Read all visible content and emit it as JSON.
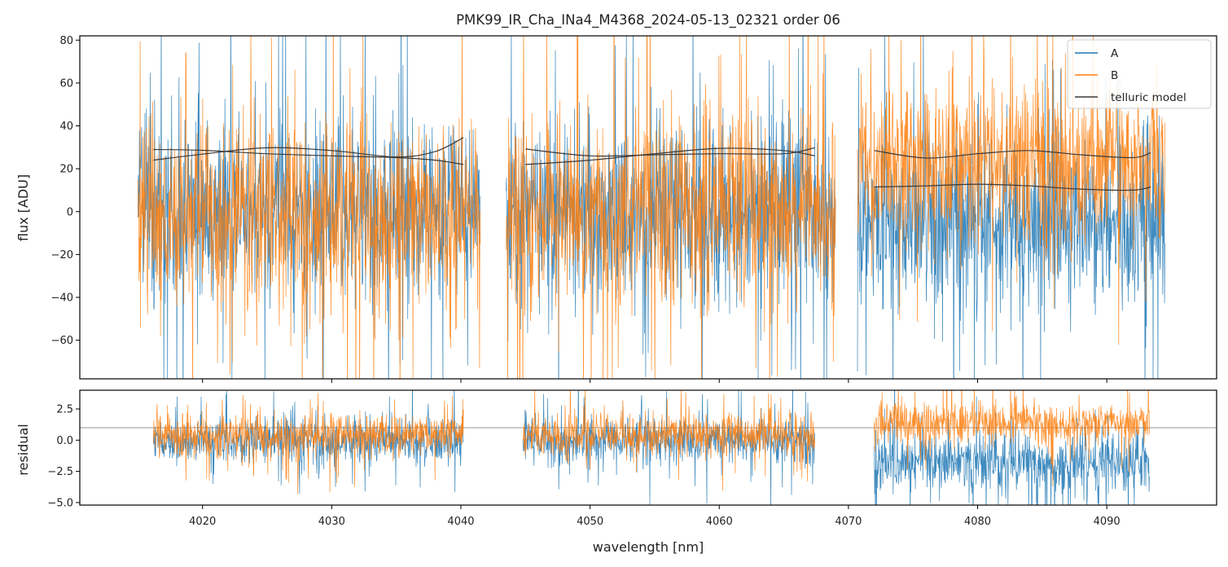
{
  "chart_data": {
    "type": "line",
    "title": "PMK99_IR_Cha_INa4_M4368_2024-05-13_02321  order 06",
    "xlabel": "wavelength [nm]",
    "xlim": [
      4010.5,
      4098.5
    ],
    "x_ticks": [
      4020,
      4030,
      4040,
      4050,
      4060,
      4070,
      4080,
      4090
    ],
    "x_tick_labels": [
      "4020",
      "4030",
      "4040",
      "4050",
      "4060",
      "4070",
      "4080",
      "4090"
    ],
    "colors": {
      "A": "#1f77b4",
      "B": "#ff7f0e",
      "telluric": "#3a3a3a",
      "ref": "#707070"
    },
    "panels": [
      {
        "name": "flux",
        "ylabel": "flux [ADU]",
        "ylim": [
          -78,
          82
        ],
        "y_ticks": [
          -60,
          -40,
          -20,
          0,
          20,
          40,
          60,
          80
        ],
        "y_tick_labels": [
          "−60",
          "−40",
          "−20",
          "0",
          "20",
          "40",
          "60",
          "80"
        ],
        "segments": [
          {
            "x_start": 4015.0,
            "x_end": 4041.5,
            "A": {
              "center": 0,
              "spread": 38
            },
            "B": {
              "center": 0,
              "spread": 40
            }
          },
          {
            "x_start": 4043.5,
            "x_end": 4069.0,
            "A": {
              "center": 0,
              "spread": 38
            },
            "B": {
              "center": 0,
              "spread": 40
            }
          },
          {
            "x_start": 4070.7,
            "x_end": 4094.5,
            "A": {
              "center": -5,
              "spread": 36
            },
            "B": {
              "center": 22,
              "spread": 34
            }
          }
        ],
        "telluric_model": [
          {
            "name": "segment-1-upper",
            "x": [
              4016.2,
              4020,
              4025,
              4030,
              4035,
              4038,
              4040.2
            ],
            "y": [
              29.0,
              28.6,
              27.0,
              26.0,
              25.2,
              24.0,
              22.0
            ]
          },
          {
            "name": "segment-1-lower",
            "x": [
              4016.2,
              4020,
              4025,
              4030,
              4035,
              4038,
              4040.2
            ],
            "y": [
              24.0,
              26.8,
              29.8,
              28.5,
              25.5,
              28.0,
              34.5
            ]
          },
          {
            "name": "segment-2-upper",
            "x": [
              4045,
              4050,
              4055,
              4060,
              4065,
              4067.4
            ],
            "y": [
              29.2,
              26.0,
              26.5,
              27.0,
              27.0,
              29.8
            ]
          },
          {
            "name": "segment-2-lower",
            "x": [
              4045,
              4050,
              4055,
              4060,
              4065,
              4067.4
            ],
            "y": [
              22.0,
              24.0,
              27.0,
              29.5,
              28.5,
              26.0
            ]
          },
          {
            "name": "segment-3-upper",
            "x": [
              4072,
              4076,
              4080,
              4084,
              4088,
              4092,
              4093.4
            ],
            "y": [
              28.5,
              25.0,
              27.0,
              28.5,
              26.5,
              25.2,
              27.5
            ]
          },
          {
            "name": "segment-3-lower",
            "x": [
              4072,
              4076,
              4080,
              4084,
              4088,
              4092,
              4093.4
            ],
            "y": [
              11.5,
              12.0,
              12.8,
              12.0,
              10.5,
              10.0,
              11.5
            ]
          }
        ],
        "legend": {
          "position": "top-right",
          "entries": [
            {
              "label": "A",
              "color_key": "A"
            },
            {
              "label": "B",
              "color_key": "B"
            },
            {
              "label": "telluric model",
              "color_key": "telluric"
            }
          ]
        }
      },
      {
        "name": "residual",
        "ylabel": "residual",
        "ylim": [
          -5.2,
          4.0
        ],
        "y_ticks": [
          -5.0,
          -2.5,
          0.0,
          2.5
        ],
        "y_tick_labels": [
          "−5.0",
          "−2.5",
          "0.0",
          "2.5"
        ],
        "reference_line": 1.0,
        "segments": [
          {
            "x_start": 4016.2,
            "x_end": 4040.2,
            "A": {
              "center": 0.0,
              "spread": 1.7
            },
            "B": {
              "center": 0.4,
              "spread": 1.6
            }
          },
          {
            "x_start": 4044.8,
            "x_end": 4067.4,
            "A": {
              "center": 0.0,
              "spread": 1.7
            },
            "B": {
              "center": 0.4,
              "spread": 1.6
            }
          },
          {
            "x_start": 4072.0,
            "x_end": 4093.3,
            "A": {
              "center": -1.8,
              "spread": 2.2
            },
            "B": {
              "center": 1.4,
              "spread": 1.5
            }
          }
        ]
      }
    ]
  }
}
